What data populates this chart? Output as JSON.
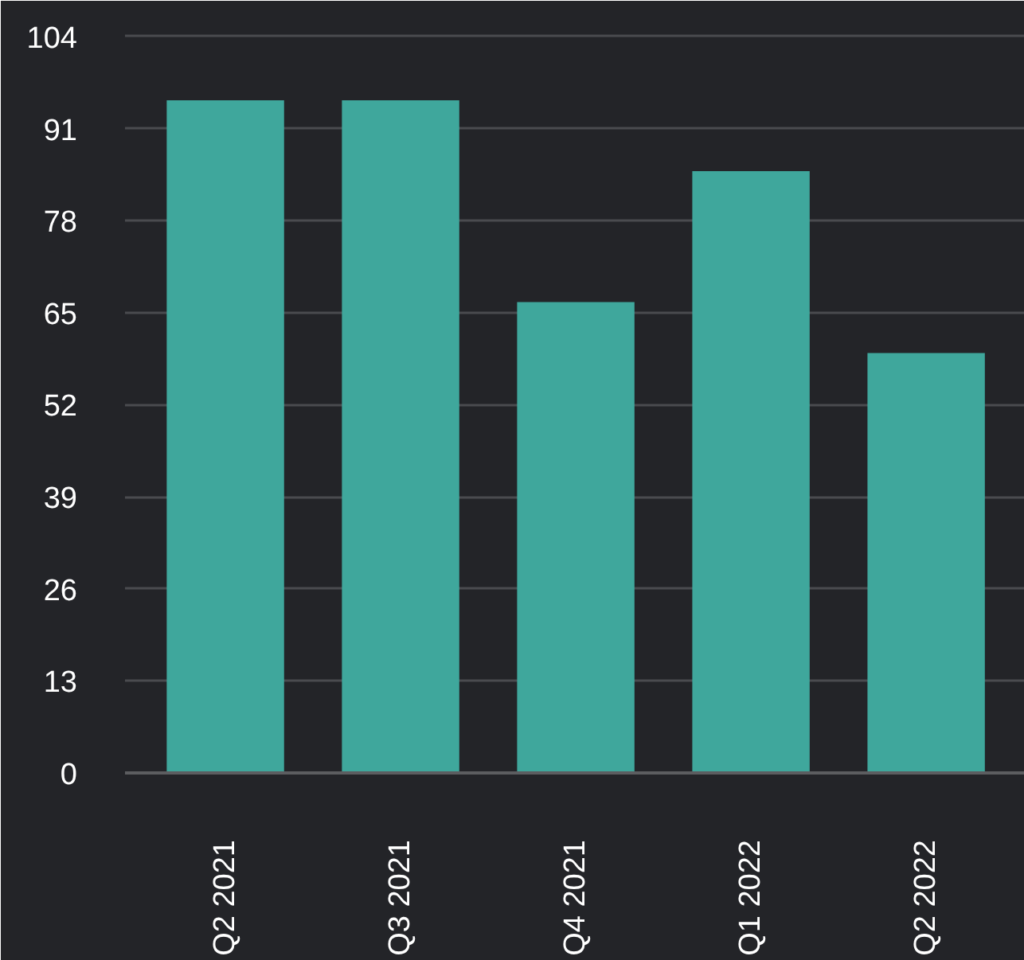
{
  "chart_data": {
    "type": "bar",
    "categories": [
      "Q2 2021",
      "Q3 2021",
      "Q4 2021",
      "Q1 2022",
      "Q2 2022"
    ],
    "values": [
      95,
      95,
      66.5,
      85,
      59.3
    ],
    "color": "#3fa79c",
    "ylim": [
      0,
      105
    ],
    "yticks": [
      0,
      13,
      26,
      39,
      52,
      65,
      78,
      91,
      104
    ],
    "grid": "y"
  }
}
